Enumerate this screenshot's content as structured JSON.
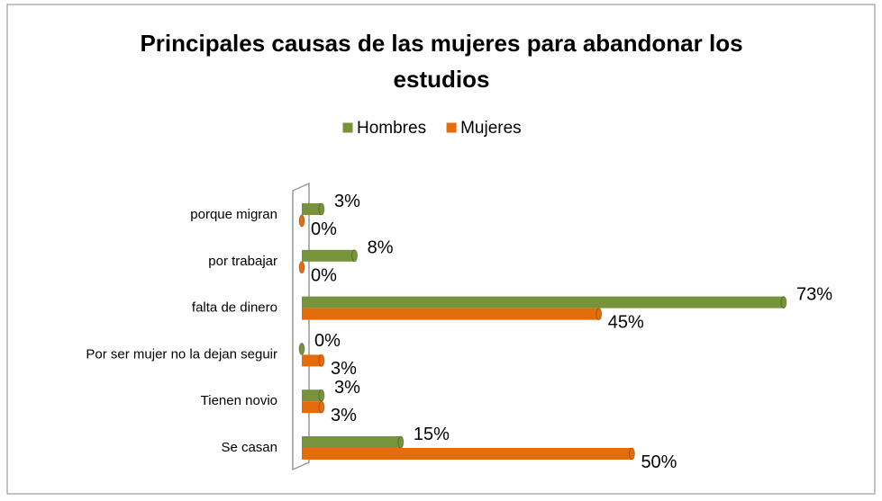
{
  "chart_data": {
    "type": "bar",
    "orientation": "horizontal",
    "title": "Principales causas de las mujeres para  abandonar los estudios",
    "categories": [
      "porque migran",
      "por trabajar",
      "falta de dinero",
      "Por ser mujer no la dejan seguir",
      "Tienen novio",
      "Se casan"
    ],
    "legend": "top",
    "series": [
      {
        "name": "Hombres",
        "color": "#77933c",
        "values": [
          3,
          8,
          73,
          0,
          3,
          15
        ],
        "value_labels": [
          "3%",
          "8%",
          "73%",
          "0%",
          "3%",
          "15%"
        ]
      },
      {
        "name": "Mujeres",
        "color": "#e46c0a",
        "values": [
          0,
          0,
          45,
          3,
          3,
          50
        ],
        "value_labels": [
          "0%",
          "0%",
          "45%",
          "3%",
          "3%",
          "50%"
        ]
      }
    ]
  }
}
